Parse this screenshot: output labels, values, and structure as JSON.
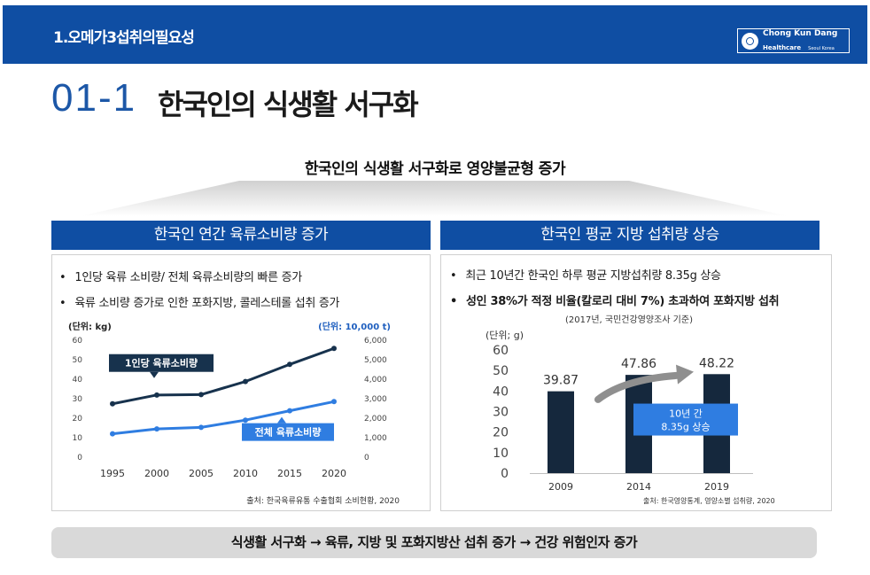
{
  "header": {
    "section_title": "1.오메가3섭취의필요성",
    "logo": {
      "line1": "Chong Kun Dang",
      "line2": "Healthcare",
      "line3": "Seoul Korea"
    }
  },
  "slide": {
    "number": "01-1",
    "title": "한국인의 식생활 서구화"
  },
  "banner": "한국인의 식생활 서구화로 영양불균형 증가",
  "left_panel": {
    "heading": "한국인 연간 육류소비량 증가",
    "bullets": [
      "1인당 육류 소비량/ 전체  육류소비량의  빠른 증가",
      "육류 소비량 증가로 인한 포화지방, 콜레스테롤 섭취 증가"
    ],
    "source": "출처: 한국육류유통 수출협회 소비현황, 2020"
  },
  "right_panel": {
    "heading": "한국인 평균 지방 섭취량 상승",
    "bullets": [
      "최근 10년간 한국인 하루 평균 지방섭취량 8.35g 상승",
      "성인 38%가  적정 비율(칼로리 대비 7%) 초과하여 포화지방 섭취"
    ],
    "survey_note": "(2017년, 국민건강영양조사 기준)",
    "source": "출처: 한국영양통계, 영양소별 섭취량, 2020"
  },
  "chart_data": [
    {
      "type": "line",
      "x": [
        1995,
        2000,
        2005,
        2010,
        2015,
        2020
      ],
      "left_axis": {
        "unit_label": "(단위: kg)",
        "ylim": [
          0,
          60
        ],
        "ticks": [
          0,
          10,
          20,
          30,
          40,
          50,
          60
        ]
      },
      "right_axis": {
        "unit_label": "(단위: 10,000 t)",
        "ylim": [
          0,
          6000
        ],
        "ticks": [
          "0",
          "1,000",
          "2,000",
          "3,000",
          "4,000",
          "5,000",
          "6,000"
        ]
      },
      "series": [
        {
          "name": "1인당 육류소비량",
          "axis": "left",
          "values": [
            27.4,
            31.9,
            32.1,
            38.8,
            47.6,
            55.8
          ],
          "color": "#17324d"
        },
        {
          "name": "전체 육류소비량",
          "axis": "right",
          "values": [
            1200,
            1450,
            1530,
            1900,
            2380,
            2850
          ],
          "color": "#2f7de1"
        }
      ],
      "grid": false
    },
    {
      "type": "bar",
      "categories": [
        "2009",
        "2014",
        "2019"
      ],
      "values": [
        39.87,
        47.86,
        48.22
      ],
      "value_labels": [
        "39.87",
        "47.86",
        "48.22"
      ],
      "unit_label": "(단위; g)",
      "ylim": [
        0,
        60
      ],
      "ticks": [
        0,
        10,
        20,
        30,
        40,
        50,
        60
      ],
      "bar_color": "#15283d",
      "annotation": {
        "line1": "10년 간",
        "line2": "8.35g 상승",
        "color": "#2f7de1"
      }
    }
  ],
  "footer": "식생활 서구화 → 육류, 지방 및 포화지방산 섭취 증가 → 건강 위험인자 증가"
}
